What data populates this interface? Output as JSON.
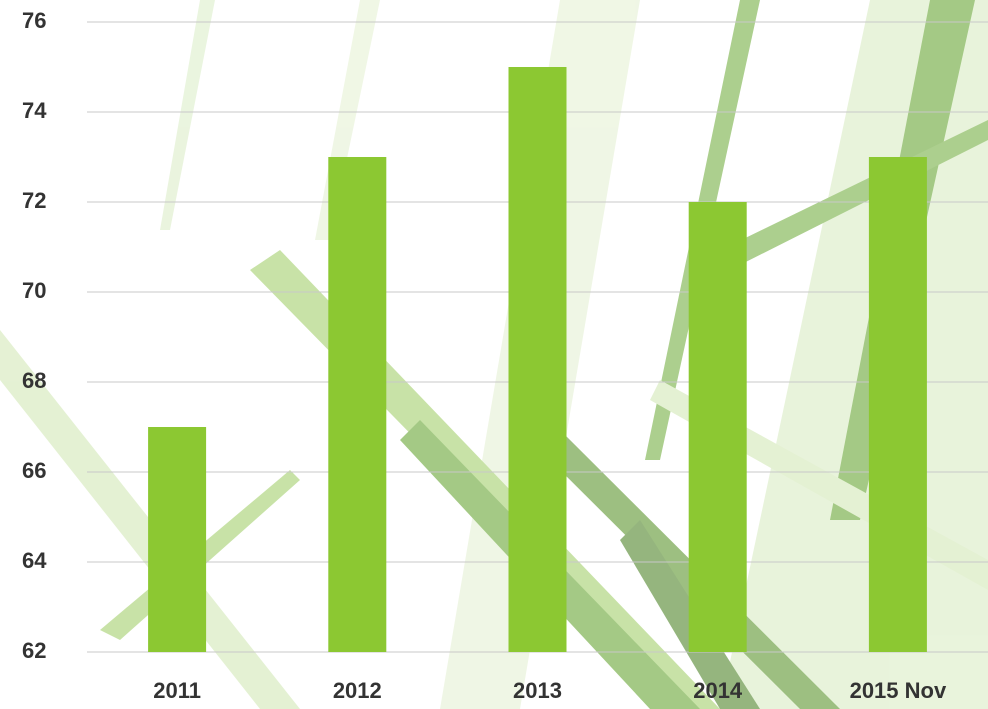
{
  "chart_data": {
    "type": "bar",
    "categories": [
      "2011",
      "2012",
      "2013",
      "2014",
      "2015 Nov"
    ],
    "values": [
      67,
      73,
      75,
      72,
      73
    ],
    "color": "#8cc832",
    "ylim": [
      62,
      76
    ],
    "yticks": [
      62,
      64,
      66,
      68,
      70,
      72,
      74,
      76
    ],
    "grid": true
  }
}
